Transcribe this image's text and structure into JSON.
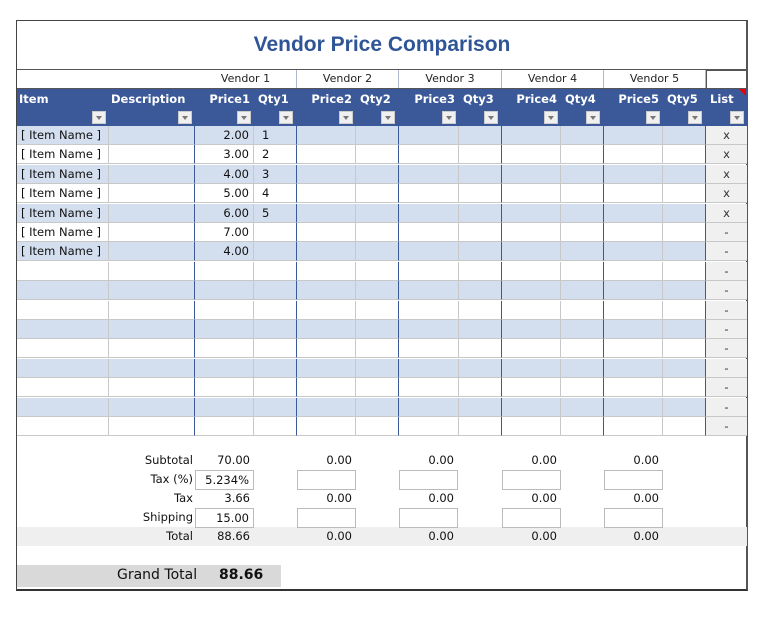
{
  "title": "Vendor Price Comparison",
  "vendors": [
    "Vendor 1",
    "Vendor 2",
    "Vendor 3",
    "Vendor 4",
    "Vendor 5"
  ],
  "headers": {
    "item": "Item",
    "description": "Description",
    "price1": "Price1",
    "qty1": "Qty1",
    "price2": "Price2",
    "qty2": "Qty2",
    "price3": "Price3",
    "qty3": "Qty3",
    "price4": "Price4",
    "qty4": "Qty4",
    "price5": "Price5",
    "qty5": "Qty5",
    "list": "List"
  },
  "rows": [
    {
      "item": "[ Item Name ]",
      "price1": "2.00",
      "qty1": "1",
      "list": "x"
    },
    {
      "item": "[ Item Name ]",
      "price1": "3.00",
      "qty1": "2",
      "list": "x"
    },
    {
      "item": "[ Item Name ]",
      "price1": "4.00",
      "qty1": "3",
      "list": "x"
    },
    {
      "item": "[ Item Name ]",
      "price1": "5.00",
      "qty1": "4",
      "list": "x"
    },
    {
      "item": "[ Item Name ]",
      "price1": "6.00",
      "qty1": "5",
      "list": "x"
    },
    {
      "item": "[ Item Name ]",
      "price1": "7.00",
      "qty1": "",
      "list": "-"
    },
    {
      "item": "[ Item Name ]",
      "price1": "4.00",
      "qty1": "",
      "list": "-"
    },
    {
      "item": "",
      "price1": "",
      "qty1": "",
      "list": "-"
    },
    {
      "item": "",
      "price1": "",
      "qty1": "",
      "list": "-"
    },
    {
      "item": "",
      "price1": "",
      "qty1": "",
      "list": "-"
    },
    {
      "item": "",
      "price1": "",
      "qty1": "",
      "list": "-"
    },
    {
      "item": "",
      "price1": "",
      "qty1": "",
      "list": "-"
    },
    {
      "item": "",
      "price1": "",
      "qty1": "",
      "list": "-"
    },
    {
      "item": "",
      "price1": "",
      "qty1": "",
      "list": "-"
    },
    {
      "item": "",
      "price1": "",
      "qty1": "",
      "list": "-"
    },
    {
      "item": "",
      "price1": "",
      "qty1": "",
      "list": "-"
    }
  ],
  "summary": {
    "labels": {
      "subtotal": "Subtotal",
      "tax_pct": "Tax (%)",
      "tax": "Tax",
      "shipping": "Shipping",
      "total": "Total"
    },
    "vendors": [
      {
        "subtotal": "70.00",
        "tax_pct": "5.234%",
        "tax": "3.66",
        "shipping": "15.00",
        "total": "88.66"
      },
      {
        "subtotal": "0.00",
        "tax_pct": "",
        "tax": "0.00",
        "shipping": "",
        "total": "0.00"
      },
      {
        "subtotal": "0.00",
        "tax_pct": "",
        "tax": "0.00",
        "shipping": "",
        "total": "0.00"
      },
      {
        "subtotal": "0.00",
        "tax_pct": "",
        "tax": "0.00",
        "shipping": "",
        "total": "0.00"
      },
      {
        "subtotal": "0.00",
        "tax_pct": "",
        "tax": "0.00",
        "shipping": "",
        "total": "0.00"
      }
    ],
    "grand_total_label": "Grand Total",
    "grand_total": "88.66"
  },
  "colors": {
    "header_bg": "#3b5998",
    "band": "#d3deef",
    "title": "#2f5597"
  }
}
